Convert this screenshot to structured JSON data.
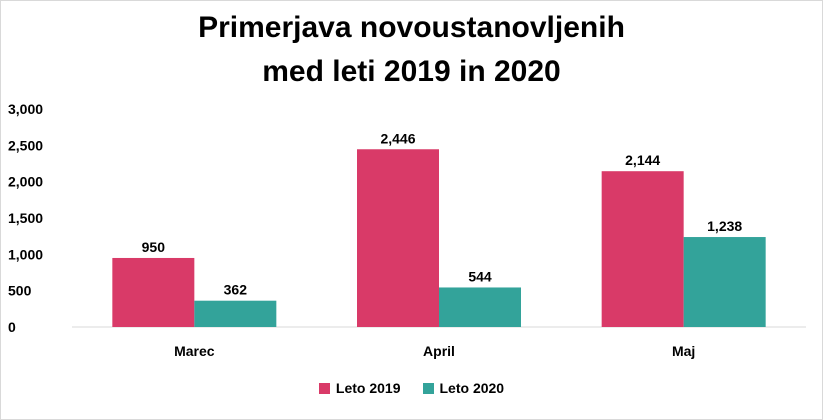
{
  "chart_data": {
    "type": "bar",
    "title_line1": "Primerjava novoustanovljenih",
    "title_line2": "med leti 2019 in 2020",
    "categories": [
      "Marec",
      "April",
      "Maj"
    ],
    "series": [
      {
        "name": "Leto 2019",
        "color": "#d93a68",
        "values": [
          950,
          2446,
          2144
        ],
        "labels": [
          "950",
          "2,446",
          "2,144"
        ]
      },
      {
        "name": "Leto 2020",
        "color": "#33a39a",
        "values": [
          362,
          544,
          1238
        ],
        "labels": [
          "362",
          "544",
          "1,238"
        ]
      }
    ],
    "ylim": [
      0,
      3000
    ],
    "yticks": [
      0,
      500,
      1000,
      1500,
      2000,
      2500,
      3000
    ],
    "ytick_labels": [
      "0",
      "500",
      "1,000",
      "1,500",
      "2,000",
      "2,500",
      "3,000"
    ],
    "xlabel": "",
    "ylabel": "",
    "grid": false,
    "legend_position": "bottom"
  }
}
